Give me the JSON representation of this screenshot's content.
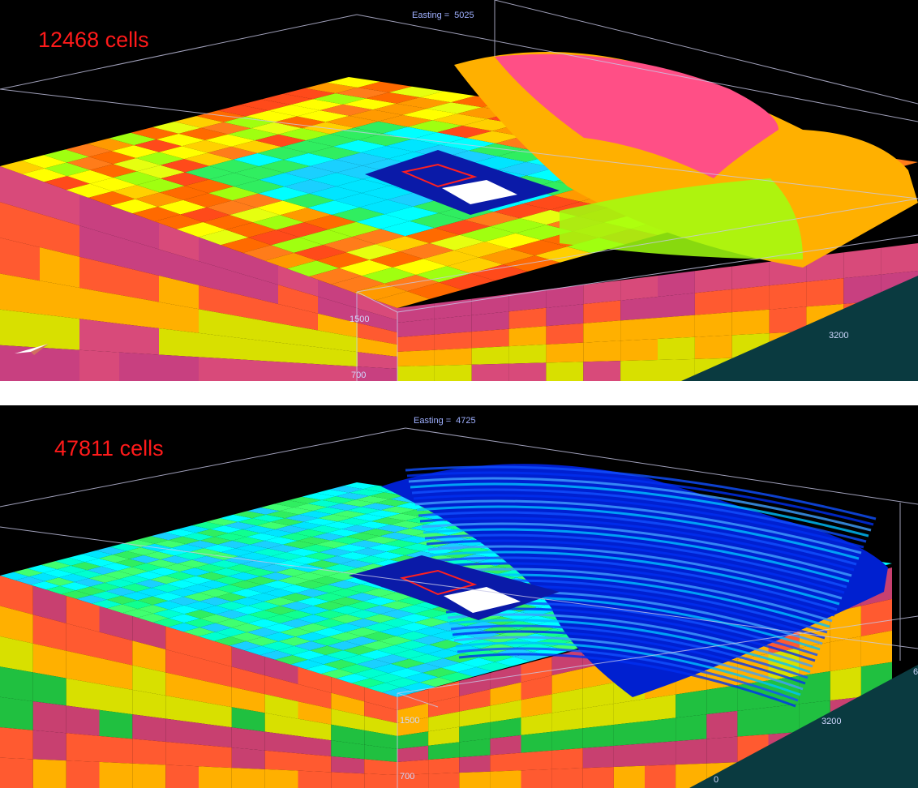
{
  "top_view": {
    "cells_label": "12468 cells",
    "easting_label": "Easting =",
    "easting_value": "5025",
    "axis_labels": {
      "elev_upper": "1500",
      "elev_lower": "700",
      "northing": "3200"
    },
    "palette": [
      "#ffff00",
      "#ffd000",
      "#ff9a00",
      "#ff6a00",
      "#ff4a1a",
      "#ff7c1a",
      "#e6ff10",
      "#a0ff10"
    ],
    "side_palette": [
      "#d84a7a",
      "#c84080",
      "#ff5a30",
      "#ffb000",
      "#d8e000"
    ],
    "hill_color": "#ff4f86"
  },
  "bottom_view": {
    "cells_label": "47811 cells",
    "easting_label": "Easting =",
    "easting_value": "4725",
    "axis_labels": {
      "elev_upper": "1500",
      "elev_lower": "700",
      "northing": "3200",
      "origin": "0",
      "edge": "6"
    },
    "palette": [
      "#00e5ff",
      "#00ffd0",
      "#10ff90",
      "#30ee60",
      "#1ad0ff",
      "#00ffff",
      "#40ff70"
    ],
    "side_palette": [
      "#c84070",
      "#ff5a30",
      "#ffb000",
      "#d8e000",
      "#20c040"
    ],
    "hill_palette": [
      "#0020d0",
      "#1050ff",
      "#0030f0",
      "#40a0ff",
      "#00c0ff"
    ]
  },
  "colors": {
    "well_blue": "#0a1aa8",
    "well_outline": "#ff2020",
    "well_fill": "#ffffff",
    "frame_line": "#c8c8e8"
  }
}
